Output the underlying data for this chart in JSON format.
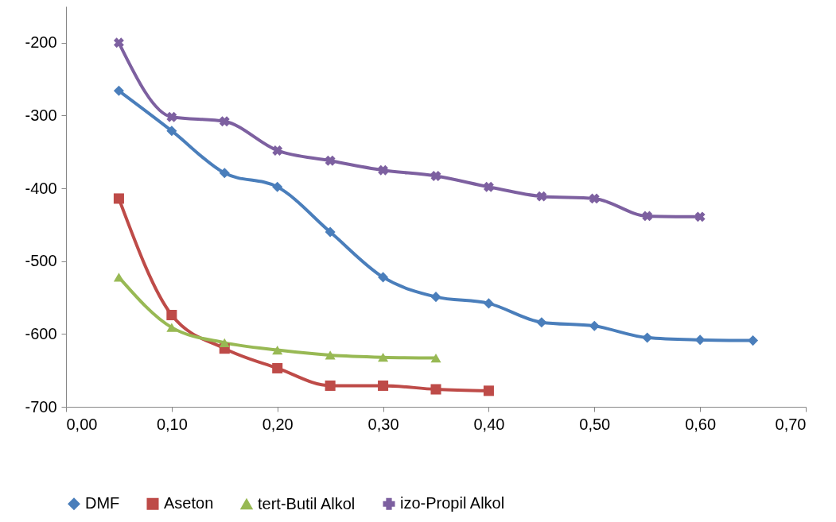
{
  "chart_data": {
    "type": "line",
    "legend": "bottom",
    "grid": false,
    "line_style": "solid",
    "xlim": [
      0,
      0.7
    ],
    "xticks": [
      {
        "value": 0,
        "label": "0,00"
      },
      {
        "value": 0.1,
        "label": "0,10"
      },
      {
        "value": 0.2,
        "label": "0,20"
      },
      {
        "value": 0.3,
        "label": "0,30"
      },
      {
        "value": 0.4,
        "label": "0,40"
      },
      {
        "value": 0.5,
        "label": "0,50"
      },
      {
        "value": 0.6,
        "label": "0,60"
      },
      {
        "value": 0.7,
        "label": "0,70"
      }
    ],
    "ylim": [
      -700,
      -150
    ],
    "yticks": [
      -700,
      -600,
      -500,
      -400,
      -300,
      -200
    ],
    "series": [
      {
        "name": "DMF",
        "color": "#4a7ebb",
        "marker": "diamond",
        "x": [
          0.05,
          0.1,
          0.15,
          0.2,
          0.25,
          0.3,
          0.35,
          0.4,
          0.45,
          0.5,
          0.55,
          0.6,
          0.65
        ],
        "values": [
          -266,
          -321,
          -379,
          -398,
          -460,
          -522,
          -549,
          -558,
          -584,
          -589,
          -605,
          -608,
          -609
        ]
      },
      {
        "name": "Aseton",
        "color": "#be4b48",
        "marker": "square",
        "x": [
          0.05,
          0.1,
          0.15,
          0.2,
          0.25,
          0.3,
          0.35,
          0.4
        ],
        "values": [
          -414,
          -574,
          -620,
          -647,
          -671,
          -671,
          -676,
          -678
        ]
      },
      {
        "name": "tert-Butil Alkol",
        "color": "#98b954",
        "marker": "triangle",
        "x": [
          0.05,
          0.1,
          0.15,
          0.2,
          0.25,
          0.3,
          0.35
        ],
        "values": [
          -522,
          -591,
          -612,
          -622,
          -629,
          -632,
          -633
        ]
      },
      {
        "name": "izo-Propil Alkol",
        "color": "#7d60a0",
        "marker": "cross",
        "x": [
          0.05,
          0.1,
          0.15,
          0.2,
          0.25,
          0.3,
          0.35,
          0.4,
          0.45,
          0.5,
          0.55,
          0.6
        ],
        "values": [
          -200,
          -302,
          -308,
          -348,
          -362,
          -375,
          -383,
          -398,
          -411,
          -414,
          -438,
          -439
        ]
      }
    ]
  }
}
